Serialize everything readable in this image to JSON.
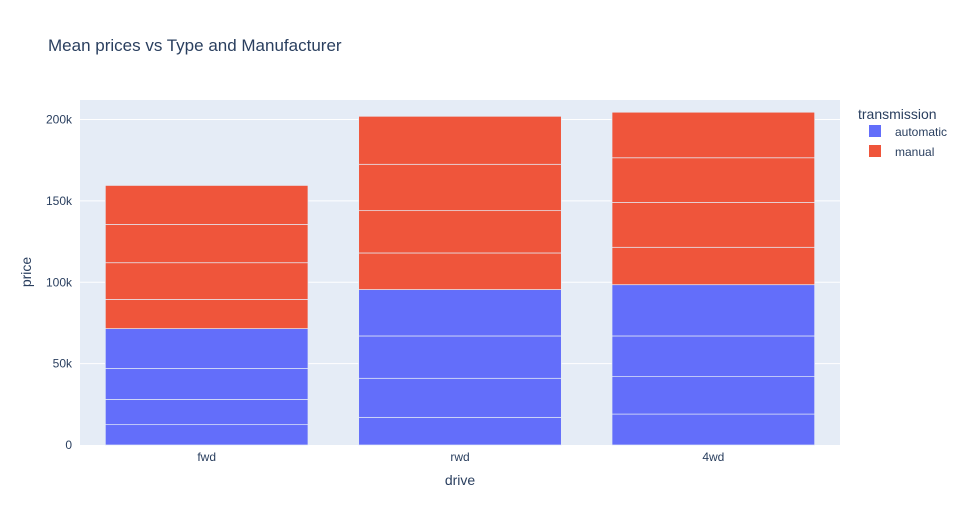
{
  "chart_data": {
    "type": "bar",
    "barmode": "stack",
    "title": "Mean prices vs Type and Manufacturer",
    "xlabel": "drive",
    "ylabel": "price",
    "categories": [
      "fwd",
      "rwd",
      "4wd"
    ],
    "ylim": [
      0,
      212000
    ],
    "yticks": [
      0,
      50000,
      100000,
      150000,
      200000
    ],
    "ytick_labels": [
      "0",
      "50k",
      "100k",
      "150k",
      "200k"
    ],
    "grid": true,
    "legend": {
      "title": "transmission",
      "position": "top-right"
    },
    "series": [
      {
        "name": "automatic",
        "color": "#636efa",
        "segments": [
          [
            12500,
            15500,
            19000,
            24500
          ],
          [
            17000,
            24000,
            26000,
            28500
          ],
          [
            19000,
            23000,
            25000,
            31500
          ]
        ]
      },
      {
        "name": "manual",
        "color": "#ef553b",
        "segments": [
          [
            18000,
            22500,
            23500,
            24000
          ],
          [
            22500,
            26000,
            28500,
            29500
          ],
          [
            23000,
            27500,
            27500,
            28000
          ]
        ]
      }
    ]
  },
  "colors": {
    "plot_bg": "#e5ecf6",
    "grid": "#ffffff",
    "text": "#2a3f5f",
    "segment_line": "#e5ecf6"
  }
}
